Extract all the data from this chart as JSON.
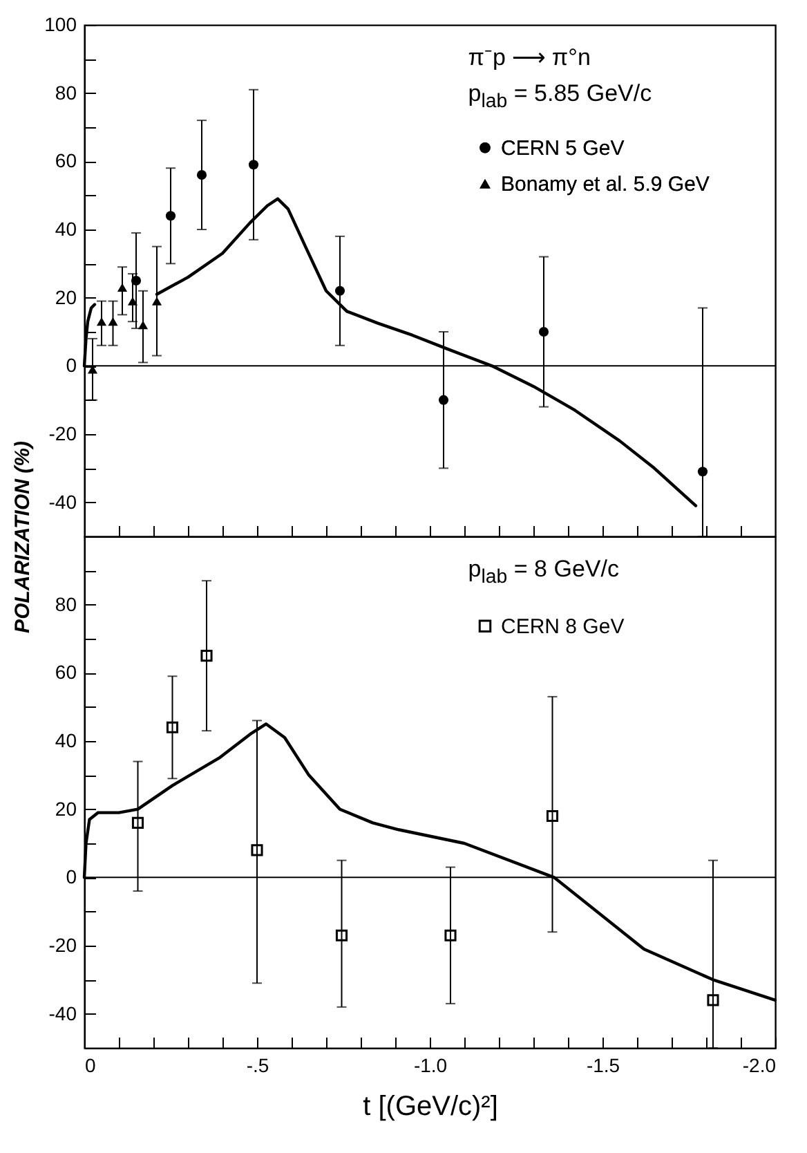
{
  "chart_data": [
    {
      "type": "scatter",
      "annotations": [
        "π⁻p ⟶ π°n",
        "p$_{lab}$ = 5.85 GeV/c"
      ],
      "ylabel": "POLARIZATION (%)",
      "xlim": [
        0,
        -2
      ],
      "ylim": [
        -50,
        100
      ],
      "xticks": [
        {
          "value": -0.1,
          "label": null
        },
        {
          "value": -0.2,
          "label": null
        },
        {
          "value": -0.3,
          "label": null
        },
        {
          "value": -0.4,
          "label": null
        },
        {
          "value": -0.5,
          "label": null
        },
        {
          "value": -0.6,
          "label": null
        },
        {
          "value": -0.7,
          "label": null
        },
        {
          "value": -0.8,
          "label": null
        },
        {
          "value": -0.9,
          "label": null
        },
        {
          "value": -1,
          "label": null
        },
        {
          "value": -1.1,
          "label": null
        },
        {
          "value": -1.2,
          "label": null
        },
        {
          "value": -1.3,
          "label": null
        },
        {
          "value": -1.4,
          "label": null
        },
        {
          "value": -1.5,
          "label": null
        },
        {
          "value": -1.6,
          "label": null
        },
        {
          "value": -1.7,
          "label": null
        },
        {
          "value": -1.8,
          "label": null
        },
        {
          "value": -1.9,
          "label": null
        }
      ],
      "yticks": [
        100,
        {
          "value": 90,
          "label": null
        },
        80,
        {
          "value": 70,
          "label": null
        },
        60,
        {
          "value": 50,
          "label": null
        },
        40,
        {
          "value": 30,
          "label": null
        },
        20,
        {
          "value": 10,
          "label": null
        },
        0,
        {
          "value": -10,
          "label": null
        },
        -20,
        {
          "value": -30,
          "label": null
        },
        -40
      ],
      "tick_labels": "y",
      "grid": false,
      "legend": "top right",
      "ref_lines": [
        {
          "axis": "y",
          "value": 0
        }
      ],
      "series": [
        {
          "name": "CERN 5 GeV",
          "type": "scatter",
          "marker": "circle",
          "color": "#000000",
          "x": [
            -0.15,
            -0.25,
            -0.34,
            -0.49,
            -0.74,
            -1.04,
            -1.33,
            -1.79
          ],
          "values": [
            25,
            44,
            56,
            59,
            22,
            -10,
            10,
            -31
          ],
          "errors": [
            [
              11,
              39
            ],
            [
              30,
              58
            ],
            [
              40,
              72
            ],
            [
              37,
              81
            ],
            [
              6,
              38
            ],
            [
              -30,
              10
            ],
            [
              -12,
              32
            ],
            [
              -50,
              17
            ]
          ]
        },
        {
          "name": "Bonamy et al. 5.9 GeV",
          "type": "scatter",
          "marker": "triangle",
          "color": "#000000",
          "x": [
            -0.024,
            -0.05,
            -0.083,
            -0.11,
            -0.14,
            -0.17,
            -0.21
          ],
          "values": [
            -1,
            13,
            13,
            23,
            19,
            12,
            19
          ],
          "errors": [
            [
              -10,
              8
            ],
            [
              6,
              19
            ],
            [
              6,
              19
            ],
            [
              15,
              29
            ],
            [
              13,
              27
            ],
            [
              1,
              22
            ],
            [
              3,
              35
            ]
          ]
        },
        {
          "type": "line",
          "color": "#000000",
          "x": [
            0,
            -0.005,
            -0.01,
            -0.02,
            -0.03
          ],
          "values": [
            0,
            8,
            13,
            17,
            18
          ]
        },
        {
          "type": "line",
          "color": "#000000",
          "x": [
            -0.21,
            -0.3,
            -0.4,
            -0.48,
            -0.53,
            -0.56,
            -0.59,
            -0.64,
            -0.7,
            -0.76,
            -0.85,
            -0.95,
            -1.05,
            -1.18,
            -1.3,
            -1.42,
            -1.55,
            -1.65,
            -1.77
          ],
          "values": [
            21,
            26,
            33,
            42,
            47,
            49,
            46,
            35,
            22,
            16,
            12.5,
            9,
            5,
            0,
            -6,
            -13,
            -22,
            -30,
            -41
          ]
        }
      ]
    },
    {
      "type": "scatter",
      "annotations": [
        "p$_{lab}$ = 8 GeV/c"
      ],
      "xlabel": "t  [(GeV/c)²]",
      "xlim": [
        0,
        -2
      ],
      "ylim": [
        -50,
        100
      ],
      "xticks": [
        0,
        {
          "value": -0.1,
          "label": null
        },
        {
          "value": -0.2,
          "label": null
        },
        {
          "value": -0.3,
          "label": null
        },
        {
          "value": -0.4,
          "label": null
        },
        {
          "value": -0.5,
          "label": "-.5"
        },
        {
          "value": -0.6,
          "label": null
        },
        {
          "value": -0.7,
          "label": null
        },
        {
          "value": -0.8,
          "label": null
        },
        {
          "value": -0.9,
          "label": null
        },
        {
          "value": -1,
          "label": "-1.0"
        },
        {
          "value": -1.1,
          "label": null
        },
        {
          "value": -1.2,
          "label": null
        },
        {
          "value": -1.3,
          "label": null
        },
        {
          "value": -1.4,
          "label": null
        },
        {
          "value": -1.5,
          "label": "-1.5"
        },
        {
          "value": -1.6,
          "label": null
        },
        {
          "value": -1.7,
          "label": null
        },
        {
          "value": -1.8,
          "label": null
        },
        {
          "value": -1.9,
          "label": null
        },
        {
          "value": -2,
          "label": "-2.0"
        }
      ],
      "yticks": [
        {
          "value": 90,
          "label": null
        },
        80,
        {
          "value": 70,
          "label": null
        },
        60,
        {
          "value": 50,
          "label": null
        },
        40,
        {
          "value": 30,
          "label": null
        },
        20,
        {
          "value": 10,
          "label": null
        },
        0,
        {
          "value": -10,
          "label": null
        },
        -20,
        {
          "value": -30,
          "label": null
        },
        -40
      ],
      "grid": false,
      "legend": "top right",
      "ref_lines": [
        {
          "axis": "y",
          "value": 0
        }
      ],
      "series": [
        {
          "name": "CERN 8 GeV",
          "type": "scatter",
          "marker": "square",
          "color": "#000000",
          "x": [
            -0.155,
            -0.255,
            -0.354,
            -0.5,
            -0.745,
            -1.06,
            -1.355,
            -1.82
          ],
          "values": [
            16,
            44,
            65,
            8,
            -17,
            -17,
            18,
            -36
          ],
          "errors": [
            [
              -4,
              34
            ],
            [
              29,
              59
            ],
            [
              43,
              87
            ],
            [
              -31,
              46
            ],
            [
              -38,
              5
            ],
            [
              -37,
              3
            ],
            [
              -16,
              53
            ],
            [
              -50,
              5
            ]
          ]
        },
        {
          "type": "line",
          "color": "#000000",
          "x": [
            0,
            -0.005,
            -0.015,
            -0.04,
            -0.1,
            -0.155,
            -0.256,
            -0.39,
            -0.48,
            -0.526,
            -0.58,
            -0.65,
            -0.74,
            -0.835,
            -0.91,
            -1.1,
            -1.36,
            -1.62,
            -1.82,
            -2
          ],
          "values": [
            0,
            10,
            17,
            19,
            19,
            20,
            27,
            35,
            42,
            45,
            41,
            30,
            20,
            16,
            14,
            10,
            0,
            -21,
            -30,
            -36
          ]
        }
      ]
    }
  ]
}
